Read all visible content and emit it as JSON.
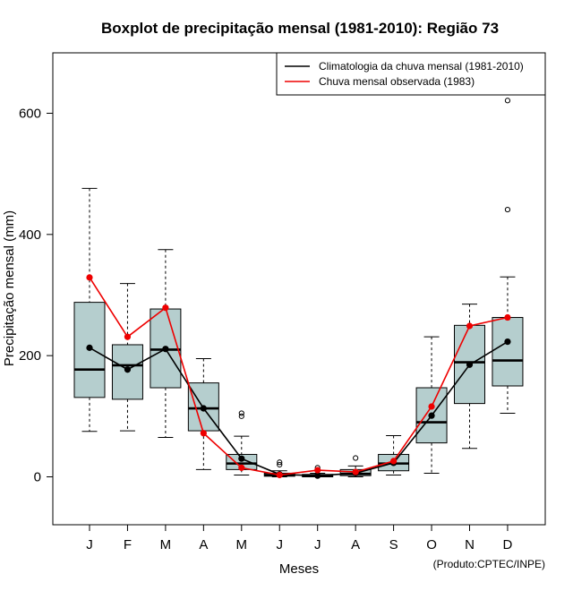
{
  "chart_data": {
    "type": "boxplot",
    "title": "Boxplot de precipitação mensal (1981-2010): Região 73",
    "xlabel": "Meses",
    "ylabel": "Precipitação mensal (mm)",
    "ylim": [
      -80,
      700
    ],
    "yticks": [
      0,
      200,
      400,
      600
    ],
    "categories": [
      "J",
      "F",
      "M",
      "A",
      "M",
      "J",
      "J",
      "A",
      "S",
      "O",
      "N",
      "D"
    ],
    "boxes": [
      {
        "whisker_low": 75,
        "q1": 131,
        "median": 177,
        "q3": 288,
        "whisker_high": 476,
        "outliers": []
      },
      {
        "whisker_low": 76,
        "q1": 128,
        "median": 184,
        "q3": 218,
        "whisker_high": 319,
        "outliers": []
      },
      {
        "whisker_low": 65,
        "q1": 147,
        "median": 210,
        "q3": 277,
        "whisker_high": 375,
        "outliers": []
      },
      {
        "whisker_low": 12,
        "q1": 76,
        "median": 113,
        "q3": 155,
        "whisker_high": 195,
        "outliers": []
      },
      {
        "whisker_low": 3,
        "q1": 12,
        "median": 22,
        "q3": 37,
        "whisker_high": 67,
        "outliers": [
          100,
          105
        ]
      },
      {
        "whisker_low": 0,
        "q1": 1,
        "median": 3,
        "q3": 6,
        "whisker_high": 10,
        "outliers": [
          20,
          24
        ]
      },
      {
        "whisker_low": 0,
        "q1": 0,
        "median": 2,
        "q3": 4,
        "whisker_high": 6,
        "outliers": [
          15
        ]
      },
      {
        "whisker_low": 0,
        "q1": 2,
        "median": 5,
        "q3": 12,
        "whisker_high": 18,
        "outliers": [
          31
        ]
      },
      {
        "whisker_low": 3,
        "q1": 10,
        "median": 22,
        "q3": 37,
        "whisker_high": 68,
        "outliers": []
      },
      {
        "whisker_low": 6,
        "q1": 56,
        "median": 90,
        "q3": 147,
        "whisker_high": 231,
        "outliers": []
      },
      {
        "whisker_low": 47,
        "q1": 121,
        "median": 189,
        "q3": 250,
        "whisker_high": 285,
        "outliers": []
      },
      {
        "whisker_low": 105,
        "q1": 150,
        "median": 192,
        "q3": 263,
        "whisker_high": 330,
        "outliers": [
          441,
          621
        ]
      }
    ],
    "series": [
      {
        "name": "Climatologia da chuva mensal (1981-2010)",
        "color": "#000000",
        "values": [
          213,
          177,
          211,
          113,
          30,
          4,
          2,
          6,
          23,
          101,
          185,
          223
        ]
      },
      {
        "name": "Chuva mensal observada (1983)",
        "color": "#ee0000",
        "values": [
          329,
          231,
          279,
          72,
          15,
          3,
          11,
          8,
          26,
          116,
          249,
          263
        ]
      }
    ],
    "legend_position": "top-right",
    "box_fill": "#b5cece",
    "caption": "(Produto:CPTEC/INPE)"
  }
}
